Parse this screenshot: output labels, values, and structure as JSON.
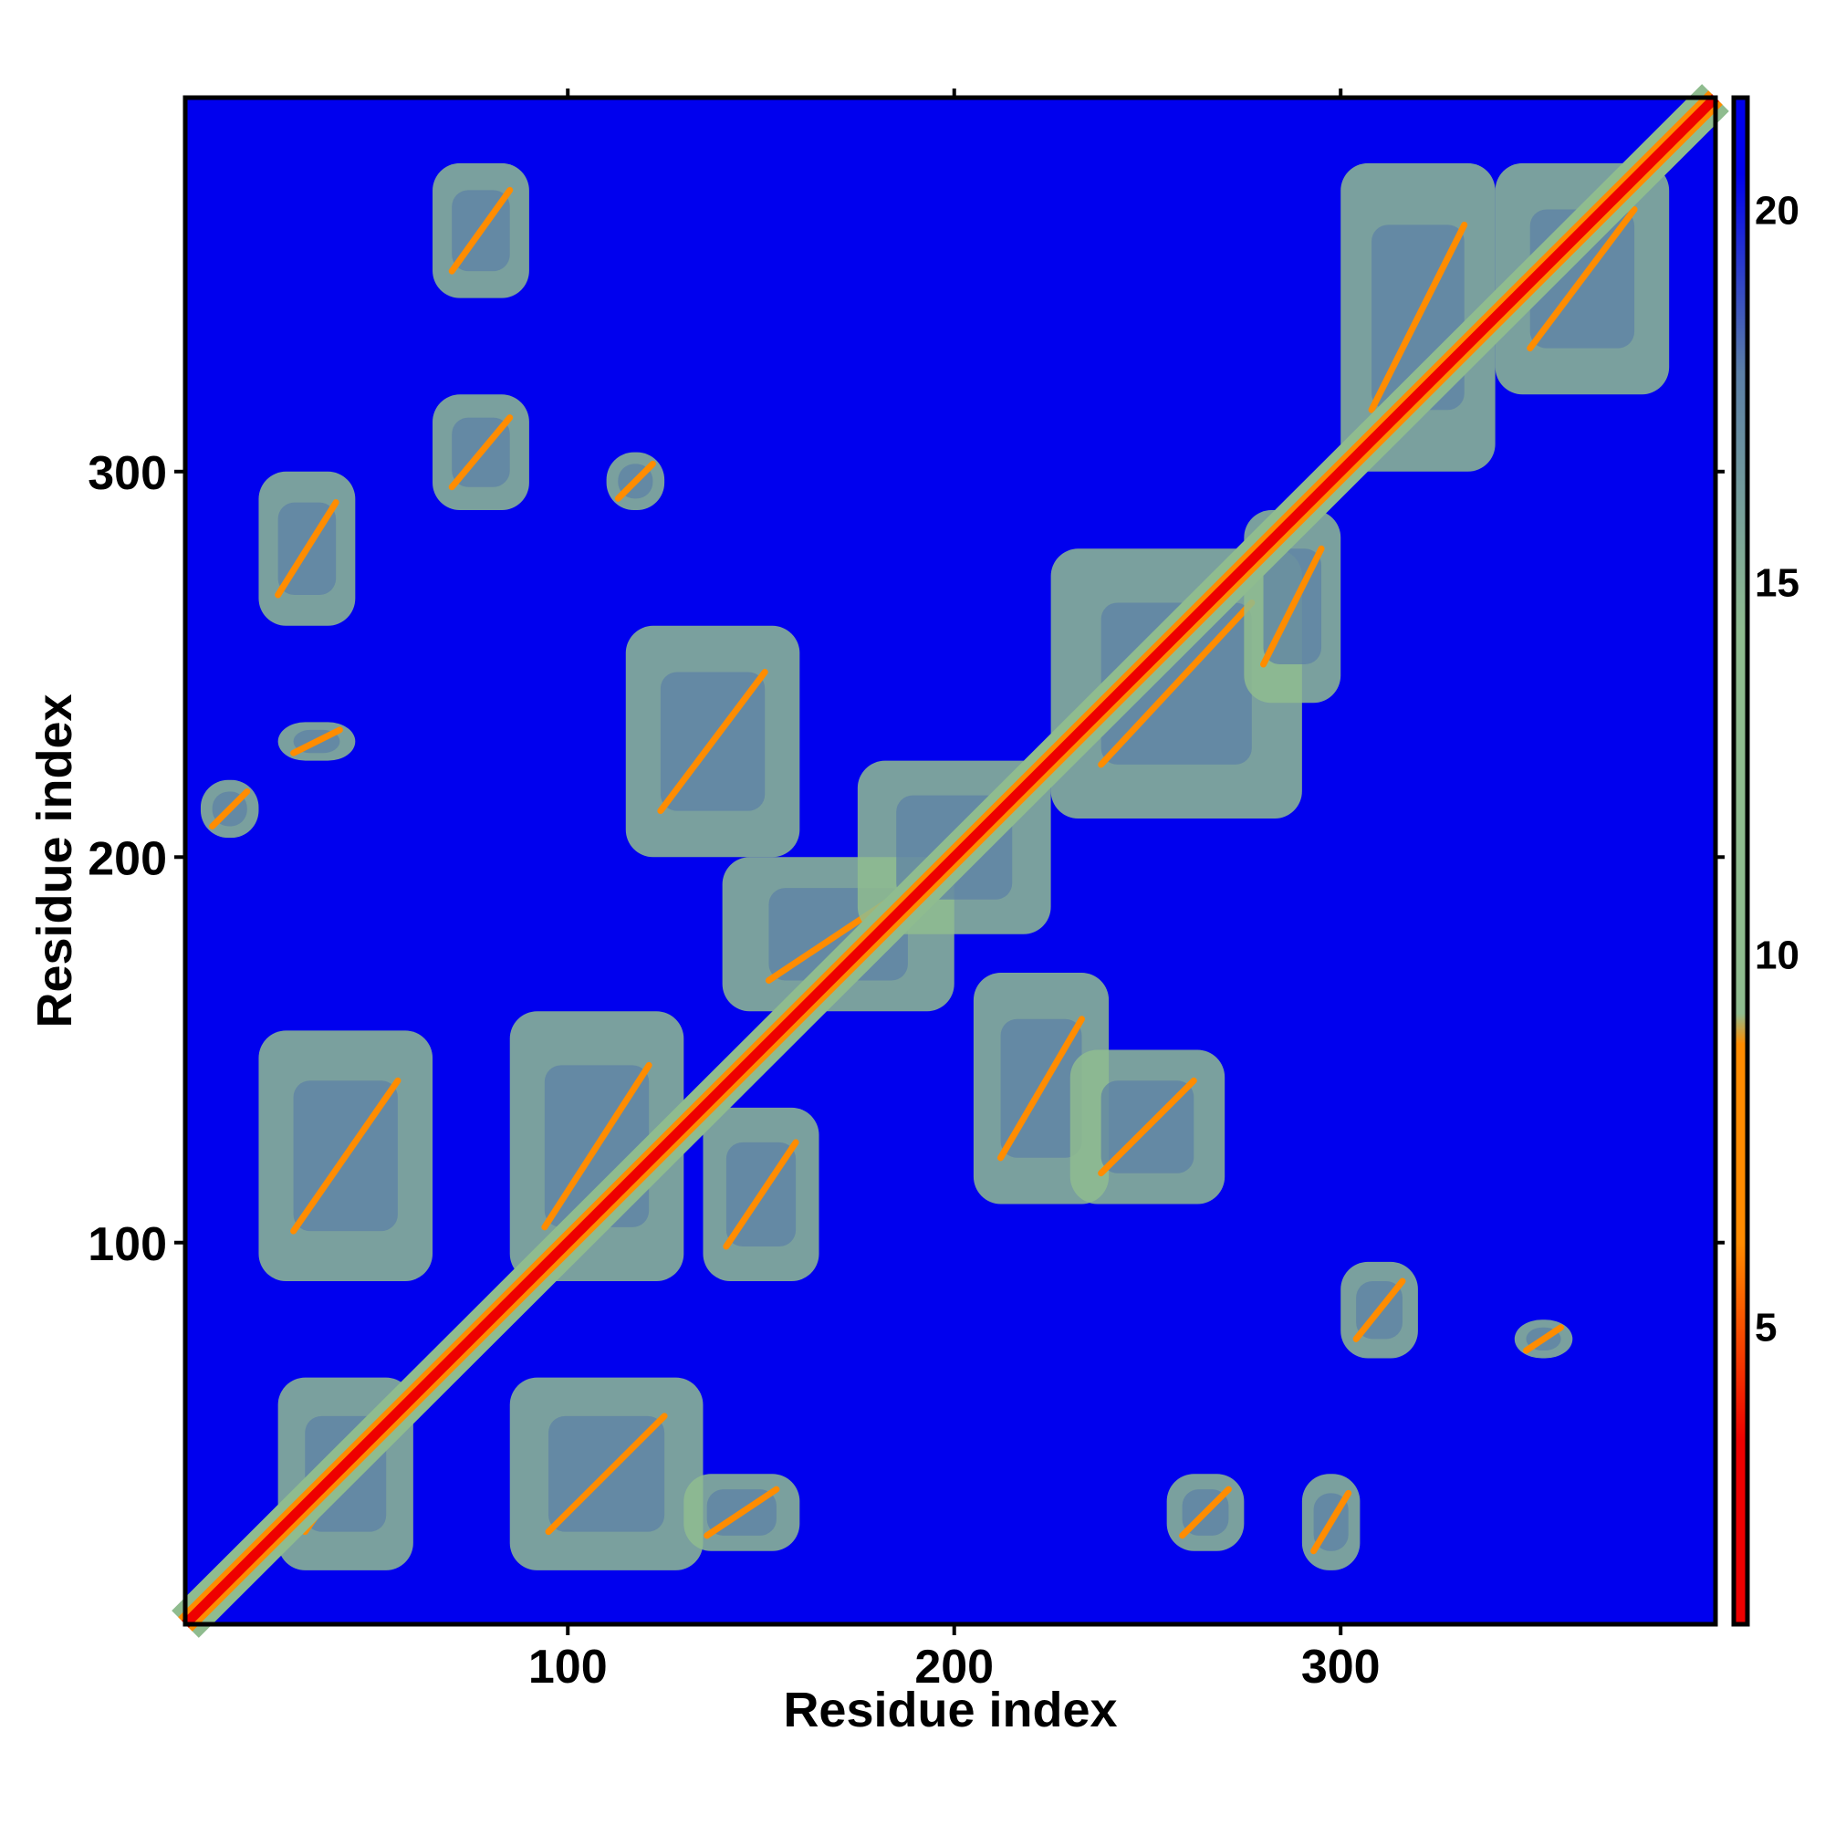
{
  "chart_data": {
    "type": "heatmap",
    "title": "",
    "xlabel": "Residue index",
    "ylabel": "Residue index",
    "xlim": [
      1,
      397
    ],
    "ylim": [
      1,
      397
    ],
    "xticks": [
      100,
      200,
      300
    ],
    "yticks": [
      100,
      200,
      300
    ],
    "colorbar": {
      "range": [
        1,
        21.5
      ],
      "ticks": [
        5,
        10,
        15,
        20
      ],
      "colors": [
        "#ee0000",
        "#ff8c00",
        "#8fbc8f",
        "#5b7fa6",
        "#0000ee"
      ]
    },
    "background_color": "#0000ee",
    "diagonal": {
      "from": 1,
      "to": 397
    },
    "contact_regions": [
      {
        "x": [
          25,
          60
        ],
        "y": [
          15,
          65
        ]
      },
      {
        "x": [
          85,
          135
        ],
        "y": [
          15,
          65
        ]
      },
      {
        "x": [
          130,
          160
        ],
        "y": [
          20,
          40
        ]
      },
      {
        "x": [
          20,
          65
        ],
        "y": [
          90,
          155
        ]
      },
      {
        "x": [
          85,
          130
        ],
        "y": [
          90,
          160
        ]
      },
      {
        "x": [
          135,
          165
        ],
        "y": [
          90,
          135
        ]
      },
      {
        "x": [
          140,
          200
        ],
        "y": [
          160,
          200
        ]
      },
      {
        "x": [
          175,
          225
        ],
        "y": [
          180,
          225
        ]
      },
      {
        "x": [
          205,
          240
        ],
        "y": [
          110,
          170
        ]
      },
      {
        "x": [
          230,
          270
        ],
        "y": [
          110,
          150
        ]
      },
      {
        "x": [
          115,
          160
        ],
        "y": [
          200,
          260
        ]
      },
      {
        "x": [
          225,
          290
        ],
        "y": [
          210,
          280
        ]
      },
      {
        "x": [
          275,
          300
        ],
        "y": [
          240,
          290
        ]
      },
      {
        "x": [
          300,
          340
        ],
        "y": [
          300,
          380
        ]
      },
      {
        "x": [
          340,
          385
        ],
        "y": [
          320,
          380
        ]
      },
      {
        "x": [
          20,
          45
        ],
        "y": [
          260,
          300
        ]
      },
      {
        "x": [
          65,
          90
        ],
        "y": [
          290,
          320
        ]
      },
      {
        "x": [
          65,
          90
        ],
        "y": [
          345,
          380
        ]
      },
      {
        "x": [
          110,
          125
        ],
        "y": [
          290,
          305
        ]
      },
      {
        "x": [
          300,
          320
        ],
        "y": [
          70,
          95
        ]
      },
      {
        "x": [
          345,
          360
        ],
        "y": [
          70,
          80
        ]
      },
      {
        "x": [
          255,
          275
        ],
        "y": [
          20,
          40
        ]
      },
      {
        "x": [
          290,
          305
        ],
        "y": [
          15,
          40
        ]
      },
      {
        "x": [
          5,
          20
        ],
        "y": [
          205,
          220
        ]
      },
      {
        "x": [
          25,
          45
        ],
        "y": [
          225,
          235
        ]
      }
    ]
  }
}
